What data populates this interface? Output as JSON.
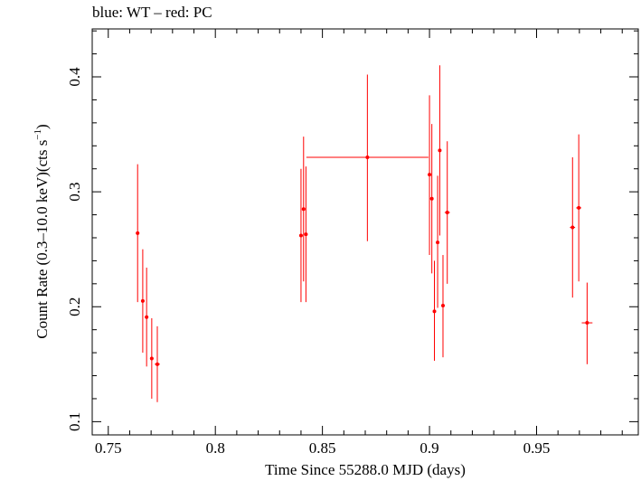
{
  "chart_data": {
    "type": "scatter",
    "title": "blue: WT – red: PC",
    "xlabel": "Time Since 55288.0 MJD (days)",
    "ylabel": "Count Rate (0.3–10.0 keV)(cts s",
    "ylabel_sup": "−1",
    "ylabel_close": ")",
    "xlim": [
      0.7425,
      0.9975
    ],
    "ylim": [
      0.0885,
      0.4417
    ],
    "x_ticks": [
      0.75,
      0.8,
      0.85,
      0.9,
      0.95
    ],
    "x_tick_labels": [
      "0.75",
      "0.8",
      "0.85",
      "0.9",
      "0.95"
    ],
    "y_ticks": [
      0.1,
      0.2,
      0.3,
      0.4
    ],
    "y_tick_labels": [
      "0.1",
      "0.2",
      "0.3",
      "0.4"
    ],
    "grid": false,
    "series": [
      {
        "color": "#ff0000",
        "points": [
          {
            "x": 0.7637,
            "y": 0.264,
            "xerr": 0.0008,
            "ylo": 0.204,
            "yhi": 0.324
          },
          {
            "x": 0.7661,
            "y": 0.205,
            "xerr": 0.0008,
            "ylo": 0.16,
            "yhi": 0.25
          },
          {
            "x": 0.7679,
            "y": 0.191,
            "xerr": 0.0008,
            "ylo": 0.148,
            "yhi": 0.234
          },
          {
            "x": 0.7703,
            "y": 0.155,
            "xerr": 0.0008,
            "ylo": 0.12,
            "yhi": 0.19
          },
          {
            "x": 0.7729,
            "y": 0.15,
            "xerr": 0.0012,
            "ylo": 0.117,
            "yhi": 0.183
          },
          {
            "x": 0.84,
            "y": 0.262,
            "xerr": 0.0008,
            "ylo": 0.204,
            "yhi": 0.32
          },
          {
            "x": 0.8412,
            "y": 0.285,
            "xerr": 0.0005,
            "ylo": 0.222,
            "yhi": 0.348
          },
          {
            "x": 0.8423,
            "y": 0.263,
            "xerr": 0.0005,
            "ylo": 0.204,
            "yhi": 0.322
          },
          {
            "x": 0.871,
            "y": 0.33,
            "xerr": 0.0285,
            "ylo": 0.257,
            "yhi": 0.402
          },
          {
            "x": 0.9,
            "y": 0.315,
            "xerr": 0.0005,
            "ylo": 0.245,
            "yhi": 0.384
          },
          {
            "x": 0.9011,
            "y": 0.294,
            "xerr": 0.0005,
            "ylo": 0.229,
            "yhi": 0.359
          },
          {
            "x": 0.9023,
            "y": 0.196,
            "xerr": 0.0005,
            "ylo": 0.153,
            "yhi": 0.24
          },
          {
            "x": 0.9038,
            "y": 0.256,
            "xerr": 0.0005,
            "ylo": 0.199,
            "yhi": 0.314
          },
          {
            "x": 0.9048,
            "y": 0.336,
            "xerr": 0.0005,
            "ylo": 0.262,
            "yhi": 0.41
          },
          {
            "x": 0.9063,
            "y": 0.201,
            "xerr": 0.0008,
            "ylo": 0.156,
            "yhi": 0.245
          },
          {
            "x": 0.9083,
            "y": 0.282,
            "xerr": 0.0012,
            "ylo": 0.22,
            "yhi": 0.344
          },
          {
            "x": 0.9668,
            "y": 0.269,
            "xerr": 0.0012,
            "ylo": 0.208,
            "yhi": 0.33
          },
          {
            "x": 0.9697,
            "y": 0.286,
            "xerr": 0.0012,
            "ylo": 0.222,
            "yhi": 0.35
          },
          {
            "x": 0.9736,
            "y": 0.186,
            "xerr": 0.0025,
            "ylo": 0.15,
            "yhi": 0.221
          }
        ]
      }
    ]
  }
}
